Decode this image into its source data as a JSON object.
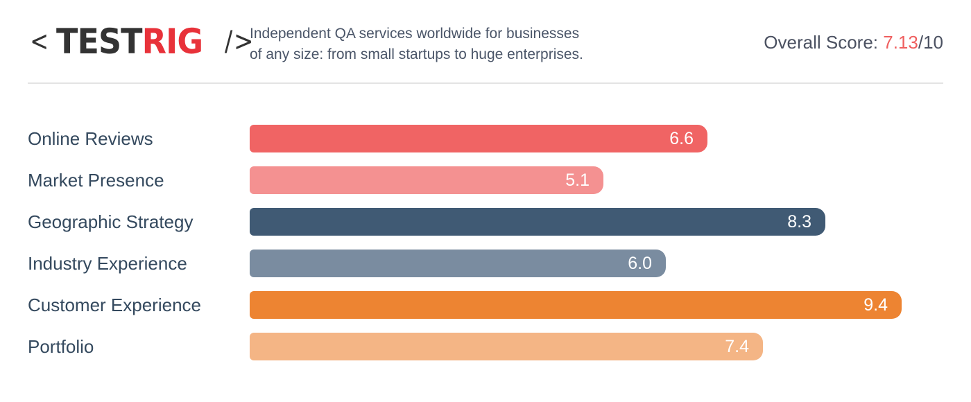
{
  "header": {
    "logo": {
      "bracket_left": "<",
      "word_dark": "TEST",
      "word_accent": "RIG",
      "bracket_right": "/>"
    },
    "tagline_line1": "Independent QA services worldwide for businesses",
    "tagline_line2": "of any size: from small startups to huge enterprises.",
    "overall_label": "Overall Score: ",
    "overall_value": "7.13",
    "overall_max": "/10"
  },
  "colors": {
    "brand_red": "#e8323a",
    "score_accent": "#ef5f5f",
    "text_dark": "#34495e"
  },
  "chart_data": {
    "type": "bar",
    "orientation": "horizontal",
    "title": "",
    "xlabel": "",
    "ylabel": "",
    "xlim": [
      0,
      10
    ],
    "grid": false,
    "legend": "none",
    "categories": [
      "Online Reviews",
      "Market Presence",
      "Geographic Strategy",
      "Industry Experience",
      "Customer Experience",
      "Portfolio"
    ],
    "values": [
      6.6,
      5.1,
      8.3,
      6.0,
      9.4,
      7.4
    ],
    "value_labels": [
      "6.6",
      "5.1",
      "8.3",
      "6.0",
      "9.4",
      "7.4"
    ],
    "bar_colors": [
      "#f06464",
      "#f49191",
      "#405a74",
      "#7a8ca0",
      "#ed8432",
      "#f4b585"
    ]
  }
}
